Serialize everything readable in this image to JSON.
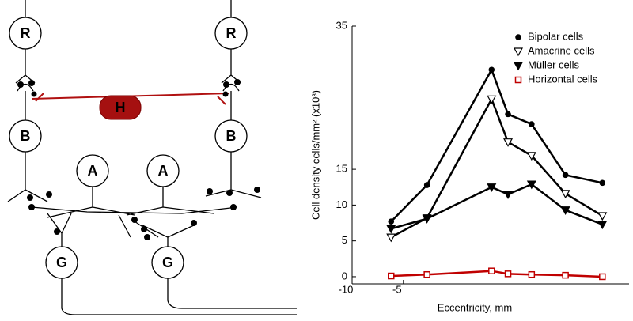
{
  "diagram": {
    "nodes": [
      {
        "label": "R"
      },
      {
        "label": "R"
      },
      {
        "label": "H"
      },
      {
        "label": "B"
      },
      {
        "label": "B"
      },
      {
        "label": "A"
      },
      {
        "label": "A"
      },
      {
        "label": "G"
      },
      {
        "label": "G"
      }
    ]
  },
  "chart_data": {
    "type": "line",
    "x_label": "Eccentricity, mm",
    "y_label": "Cell density cells/mm² (x10³)",
    "x": [
      -6.2,
      -2.7,
      3.6,
      5.2,
      7.5,
      10.8,
      14.4
    ],
    "series": [
      {
        "name": "Bipolar cells",
        "color": "#000000",
        "marker": "circle",
        "values": [
          7.7,
          12.8,
          28.9,
          22.7,
          21.3,
          14.2,
          13.1
        ]
      },
      {
        "name": "Amacrine cells",
        "color": "#000000",
        "marker": "open-triangle-down",
        "values": [
          5.5,
          8.2,
          24.8,
          18.8,
          16.9,
          11.6,
          8.5
        ]
      },
      {
        "name": "Müller cells",
        "color": "#000000",
        "marker": "triangle-down",
        "values": [
          6.7,
          8.1,
          12.5,
          11.5,
          12.9,
          9.3,
          7.3
        ]
      },
      {
        "name": "Horizontal cells",
        "color": "#c00000",
        "marker": "open-square",
        "values": [
          0.1,
          0.3,
          0.8,
          0.4,
          0.3,
          0.2,
          0.0
        ]
      }
    ],
    "xlim": [
      -10,
      17
    ],
    "xticks": [
      -10,
      -5
    ],
    "ylim": [
      -1,
      35
    ],
    "yticks": [
      0,
      5,
      10,
      15,
      35
    ],
    "legend": "top-right"
  }
}
